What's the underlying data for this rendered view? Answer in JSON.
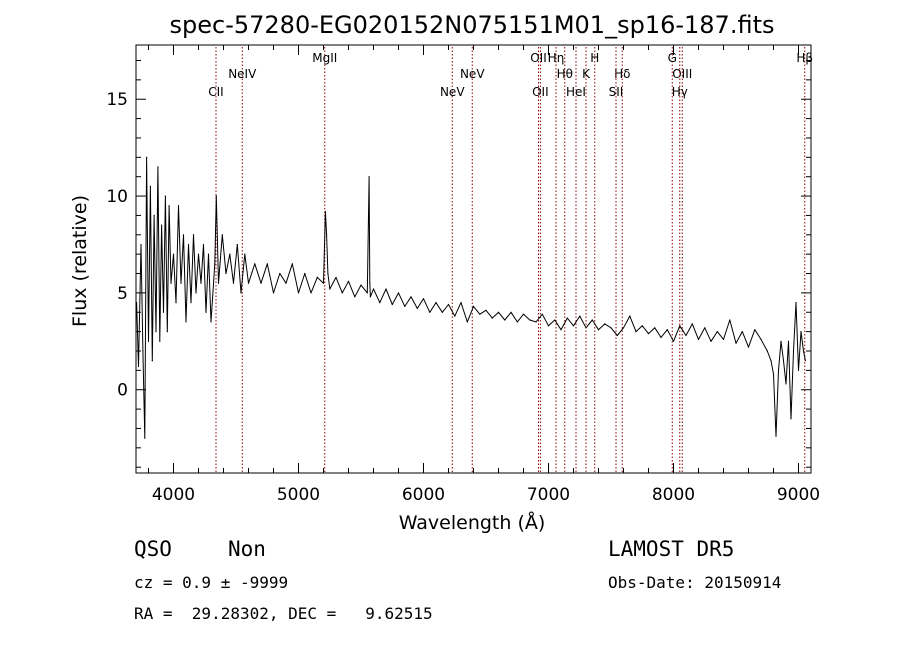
{
  "chart_data": {
    "type": "line",
    "title": "spec-57280-EG020152N075151M01_sp16-187.fits",
    "xlabel": "Wavelength (Å)",
    "ylabel": "Flux (relative)",
    "xlim": [
      3700,
      9100
    ],
    "ylim": [
      -4.3,
      17.8
    ],
    "xticks": [
      4000,
      5000,
      6000,
      7000,
      8000,
      9000
    ],
    "yticks": [
      0,
      5,
      10,
      15
    ],
    "grid": false,
    "series": [
      {
        "color": "#000000",
        "x": [
          3705,
          3720,
          3740,
          3755,
          3770,
          3785,
          3800,
          3815,
          3830,
          3845,
          3860,
          3875,
          3890,
          3905,
          3920,
          3935,
          3950,
          3965,
          3980,
          4000,
          4020,
          4040,
          4060,
          4080,
          4100,
          4120,
          4140,
          4160,
          4180,
          4200,
          4220,
          4240,
          4260,
          4280,
          4300,
          4330,
          4342,
          4360,
          4390,
          4420,
          4450,
          4480,
          4510,
          4540,
          4570,
          4600,
          4650,
          4700,
          4750,
          4800,
          4850,
          4900,
          4950,
          5000,
          5050,
          5100,
          5150,
          5200,
          5215,
          5225,
          5235,
          5250,
          5300,
          5350,
          5400,
          5450,
          5500,
          5550,
          5565,
          5570,
          5575,
          5600,
          5650,
          5700,
          5750,
          5800,
          5850,
          5900,
          5950,
          6000,
          6050,
          6100,
          6150,
          6200,
          6250,
          6300,
          6350,
          6400,
          6450,
          6500,
          6550,
          6600,
          6650,
          6700,
          6750,
          6800,
          6850,
          6900,
          6950,
          7000,
          7050,
          7100,
          7150,
          7200,
          7250,
          7300,
          7350,
          7400,
          7450,
          7500,
          7550,
          7600,
          7650,
          7700,
          7750,
          7800,
          7850,
          7900,
          7950,
          8000,
          8050,
          8100,
          8150,
          8200,
          8250,
          8300,
          8350,
          8400,
          8450,
          8500,
          8550,
          8600,
          8650,
          8700,
          8750,
          8780,
          8800,
          8820,
          8840,
          8860,
          8880,
          8900,
          8920,
          8940,
          8960,
          8980,
          9000,
          9020,
          9040,
          9055
        ],
        "y": [
          4.5,
          1.2,
          7.5,
          2.0,
          -2.5,
          12.0,
          2.5,
          10.5,
          1.5,
          9.0,
          3.0,
          11.5,
          2.5,
          8.5,
          4.0,
          10.0,
          3.0,
          9.5,
          5.5,
          7.0,
          4.5,
          9.5,
          5.5,
          8.0,
          3.5,
          7.5,
          4.5,
          8.0,
          5.0,
          7.0,
          5.5,
          7.5,
          4.0,
          7.0,
          3.5,
          6.5,
          10.0,
          5.5,
          8.0,
          6.0,
          7.0,
          5.5,
          7.5,
          5.0,
          7.0,
          5.5,
          6.5,
          5.5,
          6.5,
          5.0,
          6.0,
          5.5,
          6.5,
          5.0,
          6.0,
          5.0,
          5.8,
          5.5,
          9.2,
          8.0,
          6.0,
          5.2,
          5.8,
          5.0,
          5.6,
          4.8,
          5.4,
          5.0,
          11.0,
          5.5,
          4.8,
          5.2,
          4.5,
          5.2,
          4.4,
          5.0,
          4.3,
          4.8,
          4.2,
          4.7,
          4.0,
          4.5,
          4.0,
          4.4,
          3.8,
          4.5,
          3.5,
          4.3,
          3.9,
          4.1,
          3.7,
          4.0,
          3.6,
          4.0,
          3.5,
          3.9,
          3.6,
          3.5,
          3.9,
          3.3,
          3.6,
          3.1,
          3.7,
          3.3,
          3.8,
          3.2,
          3.6,
          3.1,
          3.4,
          3.2,
          2.8,
          3.2,
          3.8,
          3.0,
          3.3,
          2.9,
          3.2,
          2.7,
          3.1,
          2.5,
          3.3,
          2.8,
          3.4,
          2.6,
          3.2,
          2.5,
          3.0,
          2.6,
          3.6,
          2.4,
          3.0,
          2.2,
          3.1,
          2.6,
          2.0,
          1.5,
          0.8,
          -2.4,
          1.0,
          2.5,
          1.5,
          0.3,
          2.5,
          -1.5,
          2.0,
          4.5,
          1.0,
          3.0,
          2.0,
          1.5
        ]
      }
    ],
    "annotations": [
      {
        "label": "CII",
        "wavelength": 4340,
        "row": 3
      },
      {
        "label": "NeIV",
        "wavelength": 4550,
        "row": 2
      },
      {
        "label": "MgII",
        "wavelength": 5210,
        "row": 1
      },
      {
        "label": "NeV",
        "wavelength": 6230,
        "row": 3
      },
      {
        "label": "NeV",
        "wavelength": 6390,
        "row": 2
      },
      {
        "label": "OII",
        "wavelength": 6920,
        "row": 1
      },
      {
        "label": "OII",
        "wavelength": 6935,
        "row": 3
      },
      {
        "label": "Hη",
        "wavelength": 7060,
        "row": 1
      },
      {
        "label": "Hθ",
        "wavelength": 7130,
        "row": 2
      },
      {
        "label": "HeI",
        "wavelength": 7220,
        "row": 3
      },
      {
        "label": "K",
        "wavelength": 7300,
        "row": 2
      },
      {
        "label": "H",
        "wavelength": 7370,
        "row": 1
      },
      {
        "label": "Hδ",
        "wavelength": 7590,
        "row": 2
      },
      {
        "label": "SII",
        "wavelength": 7540,
        "row": 3
      },
      {
        "label": "G",
        "wavelength": 7990,
        "row": 1
      },
      {
        "label": "OIII",
        "wavelength": 8070,
        "row": 2
      },
      {
        "label": "Hγ",
        "wavelength": 8050,
        "row": 3
      },
      {
        "label": "Hβ",
        "wavelength": 9050,
        "row": 1
      }
    ],
    "annotation_color": "#8b0000"
  },
  "info": {
    "class": "QSO",
    "subclass": "Non",
    "survey": "LAMOST DR5",
    "cz": "cz = 0.9 ± -9999",
    "obs_date": "Obs-Date: 20150914",
    "radec": "RA =  29.28302, DEC =   9.62515"
  }
}
